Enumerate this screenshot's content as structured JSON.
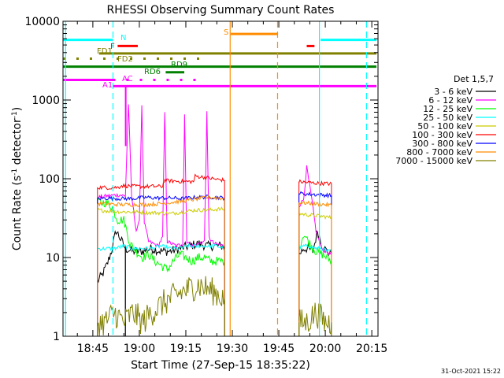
{
  "chart_data": {
    "type": "line",
    "title": "RHESSI Observing Summary Count Rates",
    "xlabel": "Start Time (27-Sep-15 18:35:22)",
    "ylabel": "Count Rate (s",
    "ylabel_sup": "-1",
    "ylabel_mid": " detector",
    "ylabel_sup2": "-1",
    "ylabel_end": ")",
    "x_unit": "minutes of day",
    "x_range": [
      1115.37,
      1217
    ],
    "y_log": true,
    "y_range": [
      1,
      10000
    ],
    "x_ticks": [
      {
        "value": 1125,
        "label": "18:45"
      },
      {
        "value": 1140,
        "label": "19:00"
      },
      {
        "value": 1155,
        "label": "19:15"
      },
      {
        "value": 1170,
        "label": "19:30"
      },
      {
        "value": 1185,
        "label": "19:45"
      },
      {
        "value": 1200,
        "label": "20:00"
      },
      {
        "value": 1215,
        "label": "20:15"
      }
    ],
    "y_ticks": [
      {
        "value": 1,
        "label": "1"
      },
      {
        "value": 10,
        "label": "10"
      },
      {
        "value": 100,
        "label": "100"
      },
      {
        "value": 1000,
        "label": "1000"
      },
      {
        "value": 10000,
        "label": "10000"
      }
    ],
    "legend_title": "Det 1,5,7",
    "legend_position": "right",
    "grid": false,
    "series": [
      {
        "name": "3 - 6 keV",
        "color": "#000000",
        "segments": [
          {
            "x": [
              1126.5,
              1128,
              1129.5,
              1131,
              1132.5,
              1134,
              1135.5
            ],
            "y": [
              5,
              6,
              8,
              12,
              22,
              17,
              13
            ]
          },
          {
            "x": [
              1135.5,
              1138,
              1141,
              1144,
              1147,
              1150,
              1153,
              1156,
              1159,
              1162,
              1165,
              1167.5
            ],
            "y": [
              13,
              12,
              12,
              13,
              12,
              12,
              13,
              14,
              15,
              14,
              14,
              14
            ]
          },
          {
            "x": [
              1191.5,
              1193,
              1194.5,
              1196,
              1197.5,
              1199,
              1200.5,
              1202
            ],
            "y": [
              11,
              13,
              13,
              12,
              22,
              14,
              12,
              11
            ]
          }
        ]
      },
      {
        "name": "6 - 12 keV",
        "color": "#ff00ff",
        "segments": [
          {
            "x": [
              1126.5,
              1129,
              1132,
              1134,
              1135.5,
              1136,
              1136.5,
              1137.5,
              1139,
              1140,
              1140.8,
              1141.6,
              1143,
              1146,
              1147.5,
              1148.2,
              1149,
              1152,
              1154,
              1154.6,
              1155.3,
              1157,
              1159,
              1161,
              1161.8,
              1162.5,
              1164,
              1167.5
            ],
            "y": [
              58,
              60,
              62,
              62,
              60,
              240,
              900,
              60,
              22,
              28,
              870,
              28,
              16,
              14,
              18,
              700,
              16,
              14,
              15,
              660,
              16,
              14,
              15,
              16,
              680,
              18,
              15,
              14
            ]
          },
          {
            "x": [
              1191.5,
              1193,
              1194,
              1195.5,
              1197,
              1198.5,
              1200,
              1202
            ],
            "y": [
              45,
              55,
              140,
              60,
              22,
              14,
              12,
              11
            ]
          }
        ]
      },
      {
        "name": "12 - 25 keV",
        "color": "#00ff00",
        "segments": [
          {
            "x": [
              1126.5,
              1129,
              1131,
              1133,
              1135,
              1137,
              1139,
              1141,
              1143,
              1145,
              1147,
              1149,
              1151,
              1153,
              1155,
              1157,
              1159,
              1161,
              1163,
              1165,
              1167.5
            ],
            "y": [
              50,
              50,
              45,
              30,
              30,
              15,
              12,
              10,
              11,
              9,
              8,
              7,
              9,
              11,
              10,
              9,
              10,
              10,
              9,
              9,
              9
            ]
          },
          {
            "x": [
              1191.5,
              1193,
              1195,
              1197,
              1199,
              1200.5,
              1202
            ],
            "y": [
              13,
              20,
              15,
              12,
              11,
              10,
              9
            ]
          }
        ]
      },
      {
        "name": "25 - 50 keV",
        "color": "#00ffff",
        "segments": [
          {
            "x": [
              1126.5,
              1129,
              1132,
              1135,
              1138,
              1141,
              1144,
              1147,
              1150,
              1153,
              1156,
              1159,
              1162,
              1165,
              1167.5
            ],
            "y": [
              13,
              13,
              13,
              14,
              13,
              13,
              13,
              14,
              13,
              13,
              14,
              14,
              14,
              14,
              13
            ]
          },
          {
            "x": [
              1191.5,
              1193,
              1195,
              1197,
              1199,
              1200.5,
              1202
            ],
            "y": [
              13,
              14,
              14,
              13,
              13,
              12,
              12
            ]
          }
        ]
      },
      {
        "name": "50 - 100 keV",
        "color": "#cccc00",
        "segments": [
          {
            "x": [
              1126.5,
              1130,
              1134,
              1138,
              1142,
              1146,
              1150,
              1154,
              1158,
              1162,
              1165,
              1167.5
            ],
            "y": [
              40,
              39,
              38,
              38,
              37,
              37,
              36,
              38,
              40,
              40,
              41,
              41
            ]
          },
          {
            "x": [
              1191.5,
              1194,
              1197,
              1200,
              1202
            ],
            "y": [
              36,
              35,
              34,
              33,
              32
            ]
          }
        ]
      },
      {
        "name": "100 - 300 keV",
        "color": "#ff0000",
        "segments": [
          {
            "x": [
              1126.5,
              1130,
              1133.5,
              1134,
              1138,
              1142,
              1146,
              1147.5,
              1148,
              1152,
              1156,
              1157.5,
              1158,
              1162,
              1165,
              1167.5
            ],
            "y": [
              78,
              77,
              78,
              82,
              80,
              80,
              80,
              80,
              95,
              93,
              92,
              92,
              108,
              103,
              98,
              96
            ]
          },
          {
            "x": [
              1191.5,
              1194,
              1197,
              1200,
              1202
            ],
            "y": [
              92,
              90,
              88,
              87,
              86
            ]
          }
        ]
      },
      {
        "name": "300 - 800 keV",
        "color": "#0000ff",
        "segments": [
          {
            "x": [
              1126.5,
              1130,
              1134,
              1138,
              1142,
              1146,
              1150,
              1154,
              1158,
              1162,
              1165,
              1167.5
            ],
            "y": [
              56,
              57,
              56,
              56,
              58,
              57,
              57,
              56,
              58,
              59,
              58,
              57
            ]
          },
          {
            "x": [
              1191.5,
              1194,
              1197,
              1200,
              1202
            ],
            "y": [
              65,
              64,
              63,
              62,
              61
            ]
          }
        ]
      },
      {
        "name": "800 - 7000 keV",
        "color": "#ff8c00",
        "segments": [
          {
            "x": [
              1126.5,
              1130,
              1134,
              1138,
              1142,
              1146,
              1150,
              1154,
              1158,
              1162,
              1165,
              1167.5
            ],
            "y": [
              48,
              48,
              47,
              47,
              47,
              48,
              50,
              52,
              55,
              58,
              57,
              56
            ]
          },
          {
            "x": [
              1191.5,
              1194,
              1197,
              1200,
              1202
            ],
            "y": [
              50,
              49,
              48,
              47,
              46
            ]
          }
        ]
      },
      {
        "name": "7000 - 15000 keV",
        "color": "#808000",
        "segments": [
          {
            "x": [
              1126.5,
              1129,
              1132,
              1135,
              1138,
              1141,
              1144,
              1147,
              1150,
              1153,
              1156,
              1159,
              1162,
              1165,
              1167.5
            ],
            "y": [
              1.5,
              1.5,
              2,
              1.5,
              2,
              1.5,
              2,
              2.5,
              3,
              3.5,
              4,
              4.5,
              4,
              3.5,
              3
            ]
          },
          {
            "x": [
              1191.5,
              1194,
              1197,
              1200,
              1202
            ],
            "y": [
              1.5,
              1.5,
              2,
              1.5,
              1.5
            ]
          }
        ]
      }
    ],
    "flags": [
      {
        "label": "N",
        "color": "#00ffff",
        "y": 5800,
        "segments": [
          [
            1115.37,
            1131.5
          ],
          [
            1198.5,
            1216.5
          ]
        ]
      },
      {
        "label": "S",
        "color": "#ff8c00",
        "y": 6900,
        "segments": [
          [
            1169.5,
            1184.5
          ]
        ]
      },
      {
        "label": "F",
        "color": "#ff0000",
        "y": 4850,
        "segments": [
          [
            1133,
            1139.5
          ],
          [
            1194,
            1196.5
          ]
        ]
      },
      {
        "label": "FD1",
        "color": "#808000",
        "y": 3900,
        "segments": [
          [
            1127,
            1216.5
          ]
        ]
      },
      {
        "label": "FD2",
        "color": "#808000",
        "y": 3350,
        "dotted": true,
        "segments": [
          [
            1115.37,
            1161.5
          ]
        ]
      },
      {
        "label": "RD9",
        "color": "#008000",
        "y": 2650,
        "segments": [
          [
            1115.37,
            1216.5
          ]
        ]
      },
      {
        "label": "RD6",
        "color": "#008000",
        "y": 2250,
        "segments": [
          [
            1148.5,
            1154.5
          ]
        ]
      },
      {
        "label": "AC",
        "color": "#ff00ff",
        "y": 1800,
        "dotted": true,
        "segments": [
          [
            1131.5,
            1161.5
          ]
        ]
      },
      {
        "label": "A1",
        "color": "#ff00ff",
        "y": 1800,
        "segments": [
          [
            1115.37,
            1131.5
          ]
        ]
      },
      {
        "label": "",
        "color": "#ff00ff",
        "y": 1500,
        "segments": [
          [
            1131.5,
            1216.5
          ]
        ]
      }
    ],
    "vertical_lines": [
      {
        "x": 1116.2,
        "color": "#00ffff",
        "dashed": false
      },
      {
        "x": 1131.5,
        "color": "#00ffff",
        "dashed": true
      },
      {
        "x": 1169.3,
        "color": "#ff8c00",
        "dashed": false
      },
      {
        "x": 1184.6,
        "color": "#ff8c00",
        "dashed": true
      },
      {
        "x": 1198.1,
        "color": "#00ffff",
        "dashed": false
      },
      {
        "x": 1213.3,
        "color": "#00ffff",
        "dashed": true
      }
    ],
    "a1_drop": {
      "x": 1135.6,
      "color": "#ff00ff",
      "y_top": 1500,
      "y_bottom": 260
    }
  },
  "timestamp": "31-Oct-2021 15:22"
}
